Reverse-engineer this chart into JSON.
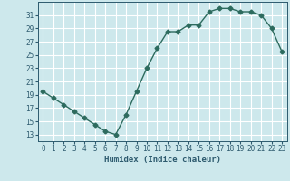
{
  "x": [
    0,
    1,
    2,
    3,
    4,
    5,
    6,
    7,
    8,
    9,
    10,
    11,
    12,
    13,
    14,
    15,
    16,
    17,
    18,
    19,
    20,
    21,
    22,
    23
  ],
  "y": [
    19.5,
    18.5,
    17.5,
    16.5,
    15.5,
    14.5,
    13.5,
    13.0,
    16.0,
    19.5,
    23.0,
    26.0,
    28.5,
    28.5,
    29.5,
    29.5,
    31.5,
    32.0,
    32.0,
    31.5,
    31.5,
    31.0,
    29.0,
    25.5
  ],
  "line_color": "#2d6b5e",
  "marker": "D",
  "marker_size": 2.5,
  "bg_color": "#cde8ec",
  "grid_color": "#ffffff",
  "xlabel": "Humidex (Indice chaleur)",
  "xlim": [
    -0.5,
    23.5
  ],
  "ylim": [
    12,
    33
  ],
  "yticks": [
    13,
    15,
    17,
    19,
    21,
    23,
    25,
    27,
    29,
    31
  ],
  "xticks": [
    0,
    1,
    2,
    3,
    4,
    5,
    6,
    7,
    8,
    9,
    10,
    11,
    12,
    13,
    14,
    15,
    16,
    17,
    18,
    19,
    20,
    21,
    22,
    23
  ],
  "font_color": "#2d5a6e",
  "tick_fontsize": 5.5,
  "xlabel_fontsize": 6.5
}
